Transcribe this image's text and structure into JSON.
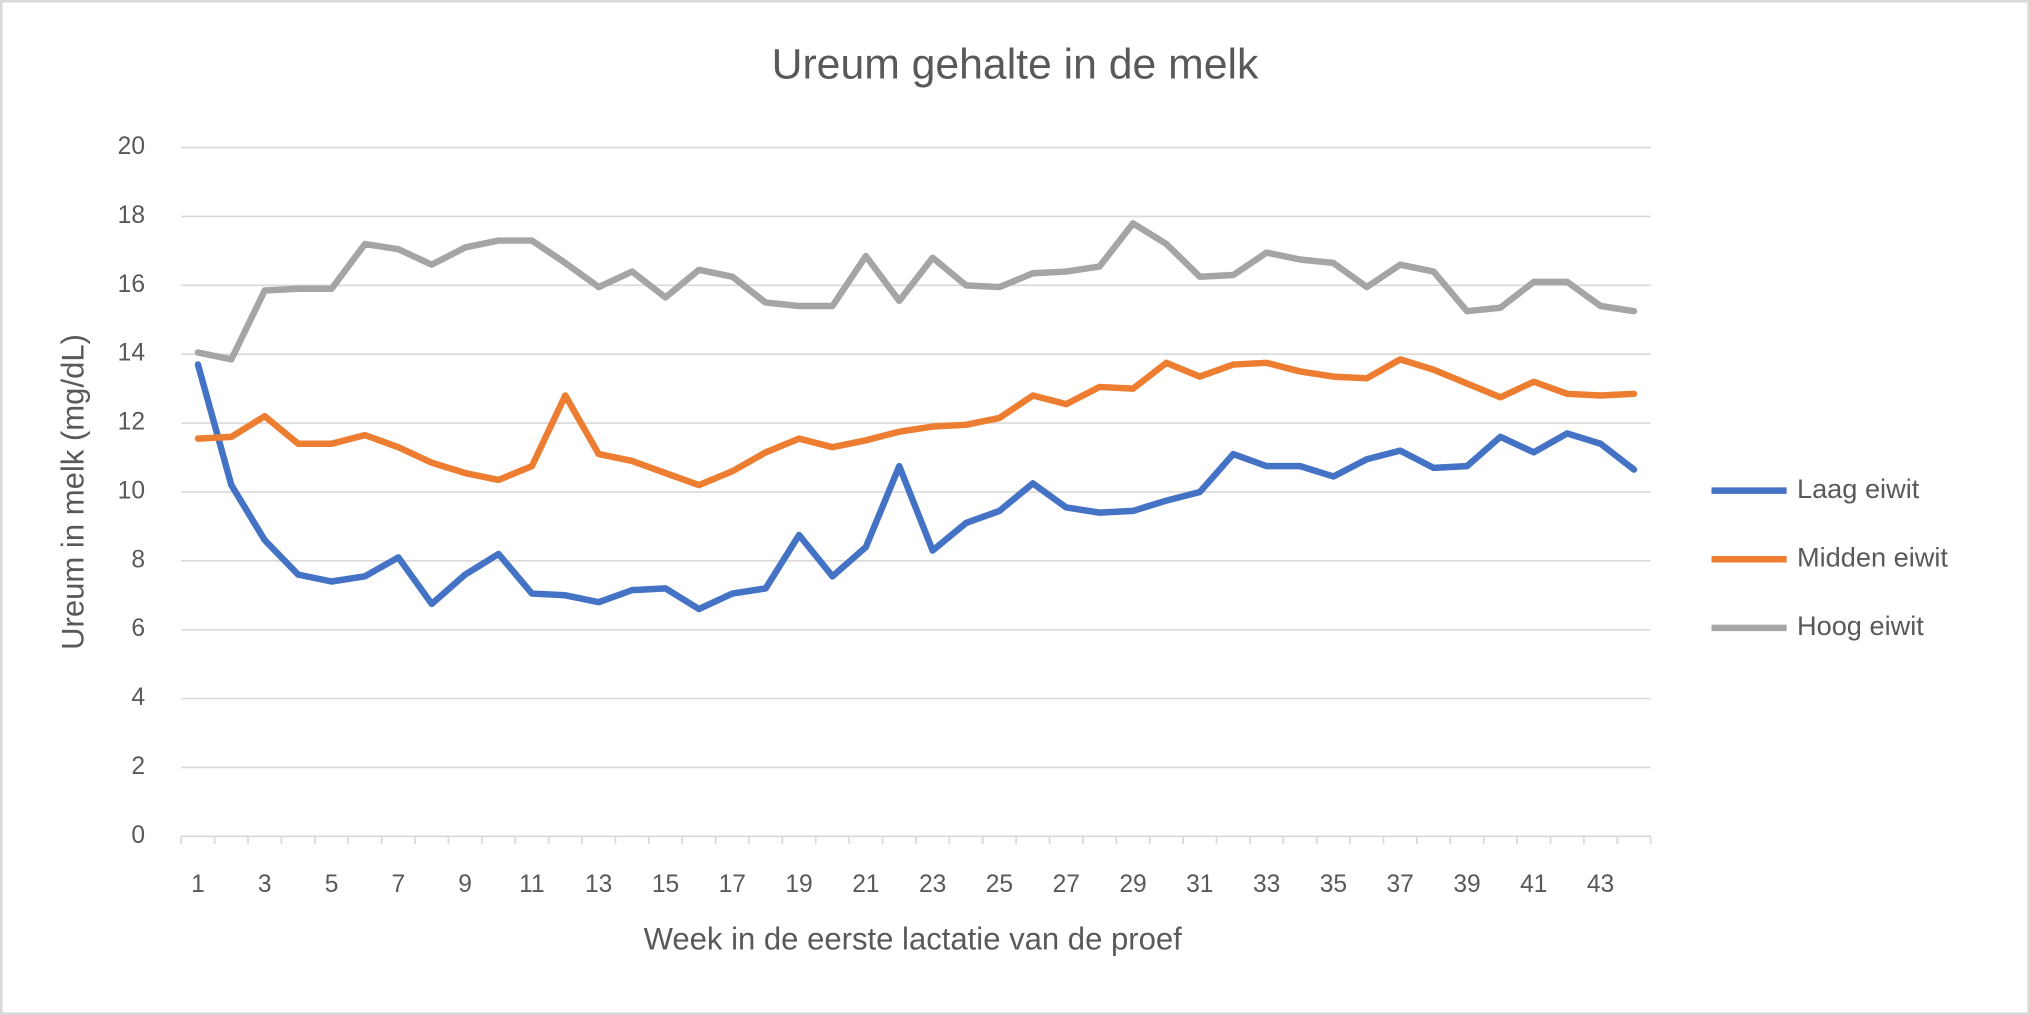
{
  "chart_data": {
    "type": "line",
    "title": "Ureum gehalte in de melk",
    "x_label": "Week in de eerste lactatie van de proef",
    "y_label": "Ureum in melk (mg/dL)",
    "categories": [
      1,
      null,
      3,
      null,
      5,
      null,
      7,
      null,
      9,
      null,
      11,
      null,
      13,
      null,
      15,
      null,
      17,
      null,
      19,
      null,
      21,
      null,
      23,
      null,
      25,
      null,
      27,
      null,
      29,
      null,
      31,
      null,
      33,
      null,
      35,
      null,
      37,
      null,
      39,
      null,
      41,
      null,
      43,
      null
    ],
    "series": [
      {
        "name": "Laag eiwit",
        "color": "#4472c4",
        "values": [
          13.7,
          10.2,
          8.6,
          7.6,
          7.4,
          7.55,
          8.1,
          6.75,
          7.6,
          8.2,
          7.05,
          7.0,
          6.8,
          7.15,
          7.2,
          6.6,
          7.05,
          7.2,
          8.75,
          7.55,
          8.4,
          10.75,
          8.3,
          9.1,
          9.45,
          10.25,
          9.55,
          9.4,
          9.45,
          9.75,
          10.0,
          11.1,
          10.75,
          10.75,
          10.45,
          10.95,
          11.2,
          10.7,
          10.75,
          11.6,
          11.15,
          11.7,
          11.4,
          10.65
        ]
      },
      {
        "name": "Midden eiwit",
        "color": "#ed7d31",
        "values": [
          11.55,
          11.6,
          12.2,
          11.4,
          11.4,
          11.65,
          11.3,
          10.85,
          10.55,
          10.35,
          10.75,
          12.8,
          11.1,
          10.9,
          10.55,
          10.2,
          10.6,
          11.15,
          11.55,
          11.3,
          11.5,
          11.75,
          11.9,
          11.95,
          12.15,
          12.8,
          12.55,
          13.05,
          13.0,
          13.75,
          13.35,
          13.7,
          13.75,
          13.5,
          13.35,
          13.3,
          13.85,
          13.55,
          13.15,
          12.75,
          13.2,
          12.85,
          12.8,
          12.85
        ]
      },
      {
        "name": "Hoog eiwit",
        "color": "#a5a5a5",
        "values": [
          14.05,
          13.85,
          15.85,
          15.9,
          15.9,
          17.2,
          17.05,
          16.6,
          17.1,
          17.3,
          17.3,
          16.65,
          15.95,
          16.4,
          15.65,
          16.45,
          16.25,
          15.5,
          15.4,
          15.4,
          16.85,
          15.55,
          16.8,
          16.0,
          15.95,
          16.35,
          16.4,
          16.55,
          17.8,
          17.2,
          16.25,
          16.3,
          16.95,
          16.75,
          16.65,
          15.95,
          16.6,
          16.4,
          15.25,
          15.35,
          16.1,
          16.1,
          15.4,
          15.25
        ]
      }
    ],
    "ylim": [
      0,
      20
    ],
    "yticks": [
      0,
      2,
      4,
      6,
      8,
      10,
      12,
      14,
      16,
      18,
      20
    ],
    "grid": true,
    "legend": "right"
  }
}
